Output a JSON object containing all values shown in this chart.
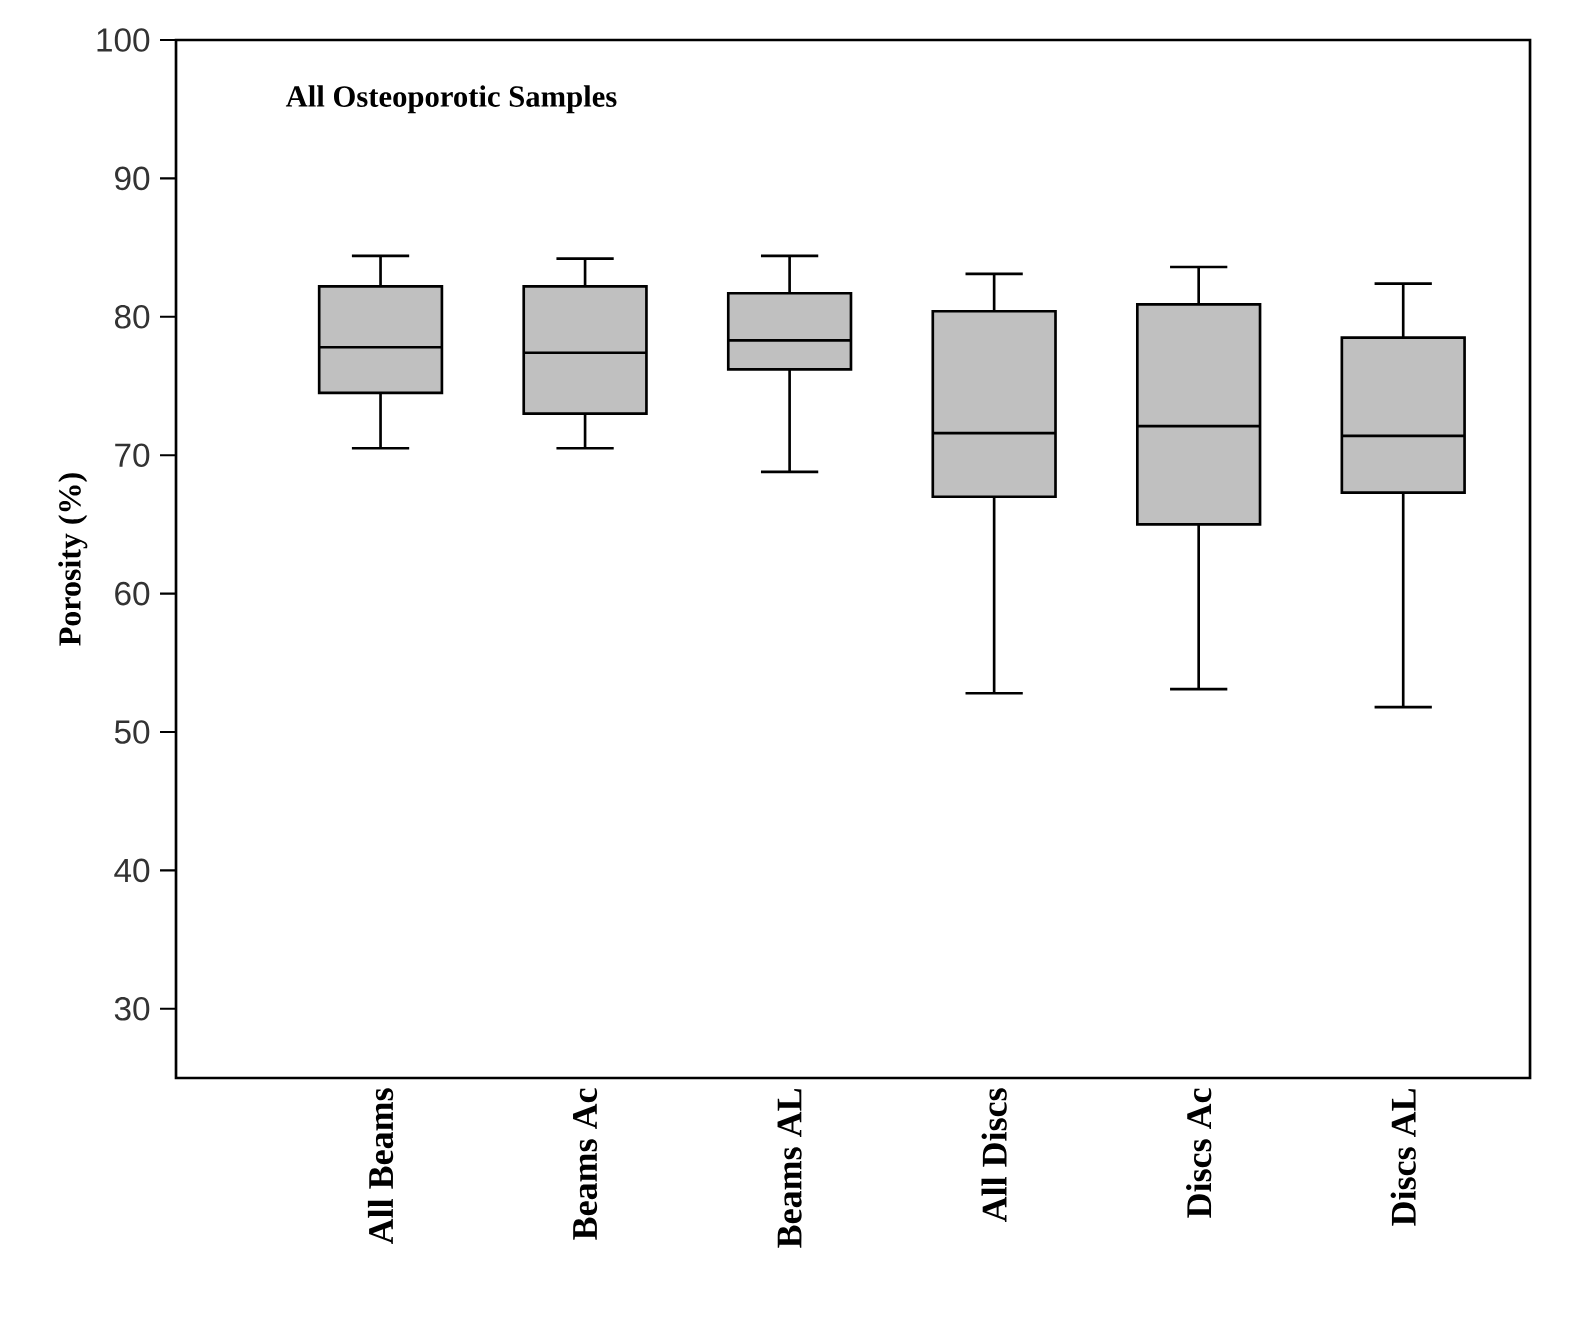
{
  "chart_data": {
    "type": "box",
    "title": "All Osteoporotic Samples",
    "ylabel": "Porosity (%)",
    "categories": [
      "All Beams",
      "Beams Ac",
      "Beams AL",
      "All Discs",
      "Discs Ac",
      "Discs AL"
    ],
    "color": "#c0c0c0",
    "boxes": [
      {
        "low": 70.5,
        "q1": 74.5,
        "median": 77.8,
        "q3": 82.2,
        "high": 84.4
      },
      {
        "low": 70.5,
        "q1": 73.0,
        "median": 77.4,
        "q3": 82.2,
        "high": 84.2
      },
      {
        "low": 68.8,
        "q1": 76.2,
        "median": 78.3,
        "q3": 81.7,
        "high": 84.4
      },
      {
        "low": 52.8,
        "q1": 67.0,
        "median": 71.6,
        "q3": 80.4,
        "high": 83.1
      },
      {
        "low": 53.1,
        "q1": 65.0,
        "median": 72.1,
        "q3": 80.9,
        "high": 83.6
      },
      {
        "low": 51.8,
        "q1": 67.3,
        "median": 71.4,
        "q3": 78.5,
        "high": 82.4
      }
    ],
    "ylim": [
      25,
      100
    ],
    "yticks": [
      30,
      40,
      50,
      60,
      70,
      80,
      90,
      100
    ]
  }
}
